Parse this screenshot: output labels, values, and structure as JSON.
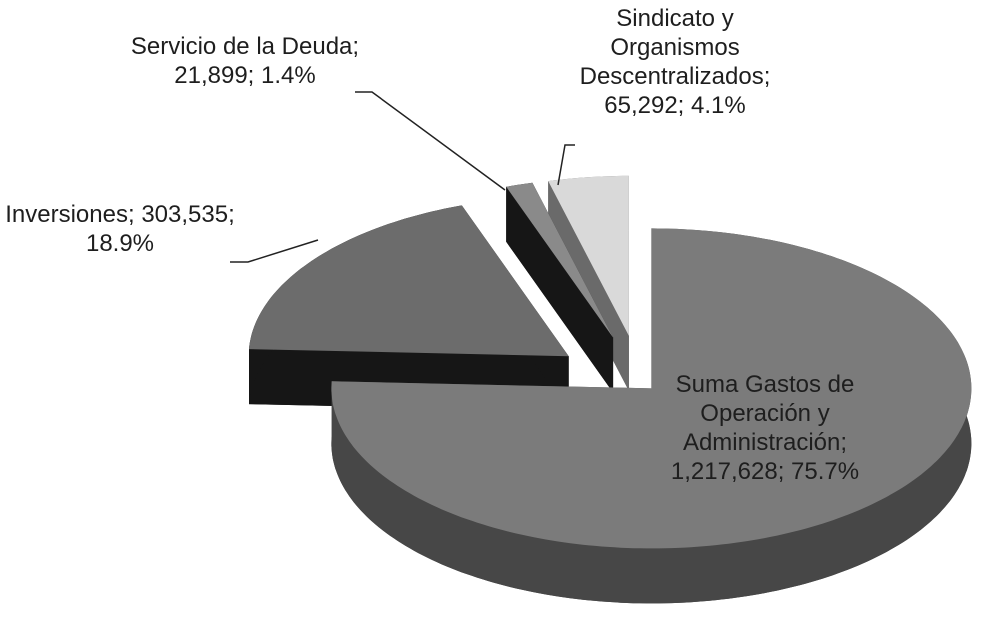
{
  "chart_data": {
    "type": "pie",
    "categories": [
      "Suma Gastos de Operación y Administración",
      "Inversiones",
      "Servicio de la Deuda",
      "Sindicato y Organismos Descentralizados"
    ],
    "values": [
      1217628,
      303535,
      21899,
      65292
    ],
    "value_labels": [
      "1,217,628",
      "303,535",
      "21,899",
      "65,292"
    ],
    "percentages": [
      75.7,
      18.9,
      1.4,
      4.1
    ],
    "percentage_labels": [
      "75.7%",
      "18.9%",
      "1.4%",
      "4.1%"
    ],
    "label_separator": "; ",
    "colors": [
      "#7b7b7b",
      "#6c6c6c",
      "#8a8a8a",
      "#d9d9d9"
    ],
    "side_colors": [
      "#474747",
      "#161616",
      "#161616",
      "#6a6a6a"
    ]
  }
}
